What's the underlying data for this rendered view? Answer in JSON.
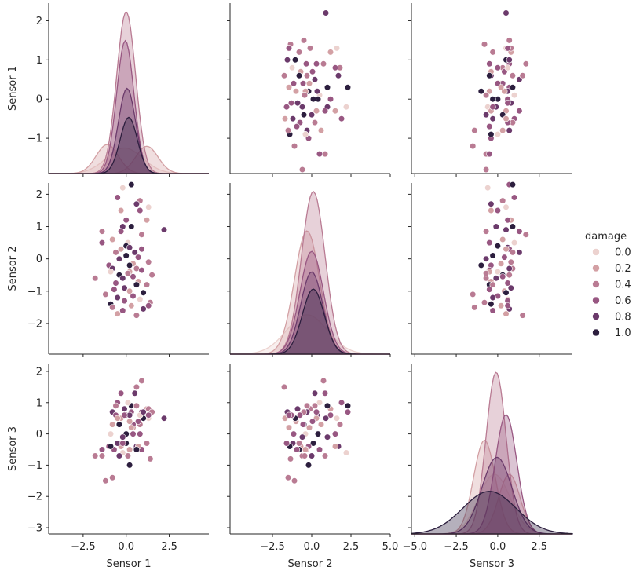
{
  "chart_data": {
    "type": "pairplot",
    "variables": [
      "Sensor 1",
      "Sensor 2",
      "Sensor 3"
    ],
    "hue_label": "damage",
    "legend": {
      "title": "damage",
      "placement": "right",
      "entries": [
        {
          "label": "0.0",
          "color": "#ecd2cf"
        },
        {
          "label": "0.2",
          "color": "#d3a0a4"
        },
        {
          "label": "0.4",
          "color": "#b97b93"
        },
        {
          "label": "0.6",
          "color": "#985782"
        },
        {
          "label": "0.8",
          "color": "#6b3a6b"
        },
        {
          "label": "1.0",
          "color": "#2c1e3e"
        }
      ]
    },
    "axes": {
      "x_ranges": [
        [
          -4.5,
          4.8
        ],
        [
          -5.2,
          5.0
        ],
        [
          -5.2,
          4.5
        ]
      ],
      "y_ranges": [
        [
          -1.9,
          2.45
        ],
        [
          -2.95,
          2.35
        ],
        [
          -3.2,
          2.25
        ]
      ],
      "x_ticks": [
        {
          "values": [
            -2.5,
            0.0,
            2.5
          ],
          "labels": [
            "−2.5",
            "0.0",
            "2.5"
          ]
        },
        {
          "values": [
            -2.5,
            0.0,
            2.5,
            5.0
          ],
          "labels": [
            "−2.5",
            "0.0",
            "2.5",
            "5.0"
          ]
        },
        {
          "values": [
            -5.0,
            -2.5,
            0.0,
            2.5
          ],
          "labels": [
            "−5.0",
            "−2.5",
            "0.0",
            "2.5"
          ]
        }
      ],
      "y_ticks": [
        {
          "values": [
            -1,
            0,
            1,
            2
          ],
          "labels": [
            "−1",
            "0",
            "1",
            "2"
          ]
        },
        {
          "values": [
            -2,
            -1,
            0,
            1,
            2
          ],
          "labels": [
            "−2",
            "−1",
            "0",
            "1",
            "2"
          ]
        },
        {
          "values": [
            -3,
            -2,
            -1,
            0,
            1,
            2
          ],
          "labels": [
            "−3",
            "−2",
            "−1",
            "0",
            "1",
            "2"
          ]
        }
      ]
    },
    "grid": false,
    "kde": [
      [
        {
          "hue": "0.0",
          "mu": -0.1,
          "sigma": 1.05,
          "peak": 0.15
        },
        {
          "hue": "0.2",
          "mu": -1.1,
          "sigma": 0.65,
          "peak": 0.17
        },
        {
          "hue": "0.2",
          "mu": 1.2,
          "sigma": 0.65,
          "peak": 0.16
        },
        {
          "hue": "0.4",
          "mu": 0.0,
          "sigma": 0.55,
          "peak": 0.95
        },
        {
          "hue": "0.6",
          "mu": -0.05,
          "sigma": 0.5,
          "peak": 0.78
        },
        {
          "hue": "0.8",
          "mu": 0.05,
          "sigma": 0.5,
          "peak": 0.5
        },
        {
          "hue": "1.0",
          "mu": 0.15,
          "sigma": 0.5,
          "peak": 0.33
        }
      ],
      [
        {
          "hue": "0.0",
          "mu": -0.3,
          "sigma": 1.3,
          "peak": 0.23
        },
        {
          "hue": "0.2",
          "mu": -0.3,
          "sigma": 0.8,
          "peak": 0.72
        },
        {
          "hue": "0.4",
          "mu": 0.1,
          "sigma": 0.75,
          "peak": 0.95
        },
        {
          "hue": "0.6",
          "mu": 0.0,
          "sigma": 0.75,
          "peak": 0.6
        },
        {
          "hue": "0.8",
          "mu": 0.0,
          "sigma": 0.7,
          "peak": 0.48
        },
        {
          "hue": "1.0",
          "mu": 0.1,
          "sigma": 0.7,
          "peak": 0.38
        }
      ],
      [
        {
          "hue": "0.0",
          "mu": -0.2,
          "sigma": 0.95,
          "peak": 0.35
        },
        {
          "hue": "0.2",
          "mu": -0.8,
          "sigma": 0.65,
          "peak": 0.55
        },
        {
          "hue": "0.2",
          "mu": 0.7,
          "sigma": 0.65,
          "peak": 0.35
        },
        {
          "hue": "0.4",
          "mu": -0.1,
          "sigma": 0.6,
          "peak": 0.95
        },
        {
          "hue": "0.6",
          "mu": 0.5,
          "sigma": 0.65,
          "peak": 0.7
        },
        {
          "hue": "0.8",
          "mu": -0.05,
          "sigma": 0.9,
          "peak": 0.45
        },
        {
          "hue": "1.0",
          "mu": -0.5,
          "sigma": 1.6,
          "peak": 0.25
        }
      ]
    ],
    "points": [
      [
        0.3,
        2.3,
        0.7,
        3
      ],
      [
        0.3,
        2.3,
        0.9,
        5
      ],
      [
        -0.2,
        2.2,
        -0.6,
        0
      ],
      [
        0.8,
        1.8,
        0.3,
        2
      ],
      [
        -0.5,
        1.9,
        1.0,
        3
      ],
      [
        0.6,
        1.7,
        -0.4,
        4
      ],
      [
        1.3,
        1.6,
        0.5,
        0
      ],
      [
        -0.3,
        1.5,
        -0.4,
        1
      ],
      [
        0.8,
        1.5,
        0.0,
        3
      ],
      [
        1.2,
        1.2,
        0.8,
        1
      ],
      [
        0.0,
        1.2,
        0.6,
        3
      ],
      [
        -0.2,
        1.0,
        -0.1,
        4
      ],
      [
        0.3,
        1.0,
        0.9,
        5
      ],
      [
        2.2,
        0.9,
        0.5,
        4
      ],
      [
        -1.4,
        0.85,
        -0.7,
        2
      ],
      [
        0.9,
        0.75,
        1.7,
        2
      ],
      [
        -0.8,
        0.6,
        0.3,
        1
      ],
      [
        0.1,
        0.5,
        1.0,
        0
      ],
      [
        -1.4,
        0.5,
        -0.5,
        3
      ],
      [
        0.0,
        0.4,
        0.0,
        5
      ],
      [
        0.2,
        0.35,
        0.6,
        4
      ],
      [
        0.9,
        0.3,
        0.7,
        3
      ],
      [
        -0.3,
        0.3,
        0.5,
        1
      ],
      [
        0.5,
        0.2,
        1.3,
        4
      ],
      [
        -0.6,
        0.2,
        0.9,
        2
      ],
      [
        0.0,
        0.1,
        -0.3,
        5
      ],
      [
        0.7,
        0.05,
        0.4,
        3
      ],
      [
        -0.4,
        0.0,
        -0.7,
        4
      ],
      [
        1.3,
        -0.1,
        0.8,
        2
      ],
      [
        0.4,
        -0.15,
        0.2,
        1
      ],
      [
        -1.0,
        -0.2,
        -0.4,
        3
      ],
      [
        0.2,
        -0.2,
        -1.0,
        5
      ],
      [
        0.6,
        -0.3,
        0.9,
        2
      ],
      [
        -0.8,
        -0.3,
        0.7,
        4
      ],
      [
        0.9,
        -0.35,
        -0.5,
        3
      ],
      [
        0.2,
        -0.4,
        -0.5,
        1
      ],
      [
        -0.9,
        -0.4,
        0.0,
        0
      ],
      [
        1.5,
        -0.5,
        0.7,
        2
      ],
      [
        -0.4,
        -0.5,
        0.3,
        5
      ],
      [
        0.4,
        -0.55,
        0.3,
        3
      ],
      [
        -0.2,
        -0.6,
        -0.1,
        4
      ],
      [
        -1.8,
        -0.6,
        -0.7,
        2
      ],
      [
        0.7,
        -0.7,
        -0.4,
        1
      ],
      [
        -0.6,
        -0.75,
        0.6,
        3
      ],
      [
        0.6,
        -0.8,
        -0.5,
        5
      ],
      [
        1.2,
        -0.8,
        -0.3,
        2
      ],
      [
        -0.1,
        -0.9,
        0.8,
        4
      ],
      [
        -0.7,
        -0.95,
        -0.5,
        3
      ],
      [
        0.2,
        -1.0,
        0.4,
        1
      ],
      [
        1.0,
        -1.05,
        0.5,
        5
      ],
      [
        -1.2,
        -1.1,
        -1.5,
        2
      ],
      [
        0.4,
        -1.15,
        0.0,
        3
      ],
      [
        -0.5,
        -1.2,
        -0.3,
        4
      ],
      [
        0.8,
        -1.25,
        0.6,
        0
      ],
      [
        -0.1,
        -1.3,
        0.6,
        3
      ],
      [
        1.4,
        -1.35,
        -0.8,
        2
      ],
      [
        -0.9,
        -1.4,
        -0.4,
        5
      ],
      [
        0.3,
        -1.45,
        0.2,
        1
      ],
      [
        -0.8,
        -1.5,
        -1.4,
        2
      ],
      [
        1.0,
        -1.55,
        0.7,
        4
      ],
      [
        -0.2,
        -1.6,
        -0.3,
        3
      ],
      [
        -0.5,
        -1.7,
        0.5,
        1
      ],
      [
        0.6,
        -1.75,
        1.5,
        2
      ],
      [
        1.3,
        -1.45,
        0.6,
        3
      ],
      [
        0.1,
        -0.45,
        -0.7,
        2
      ],
      [
        -0.3,
        0.85,
        1.3,
        3
      ]
    ]
  }
}
